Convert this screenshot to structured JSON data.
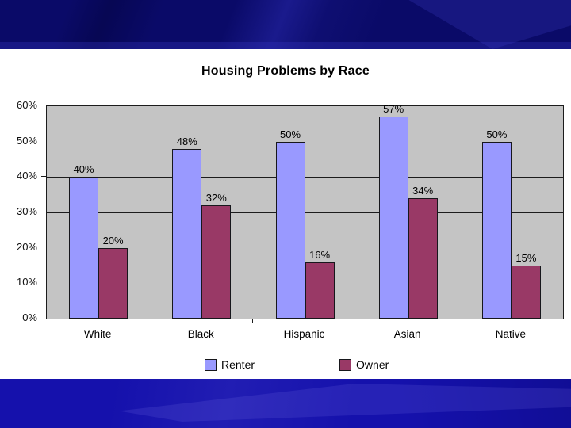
{
  "slide": {
    "top_banner_color": "#0a0a68",
    "bottom_banner_color": "#1511ac",
    "content_background": "#ffffff"
  },
  "chart_data": {
    "type": "bar",
    "title": "Housing Problems by Race",
    "categories": [
      "White",
      "Black",
      "Hispanic",
      "Asian",
      "Native"
    ],
    "series": [
      {
        "name": "Renter",
        "color": "#9999FF",
        "values": [
          40,
          48,
          50,
          57,
          50
        ]
      },
      {
        "name": "Owner",
        "color": "#993966",
        "values": [
          20,
          32,
          16,
          34,
          15
        ]
      }
    ],
    "ylim": [
      0,
      60
    ],
    "ytick_labels": [
      "0%",
      "10%",
      "20%",
      "30%",
      "40%",
      "50%",
      "60%"
    ],
    "gridlines_at": [
      30,
      40
    ],
    "data_label_suffix": "%",
    "legend_position": "bottom",
    "plot_background": "#c4c4c4",
    "grid_on": true
  }
}
